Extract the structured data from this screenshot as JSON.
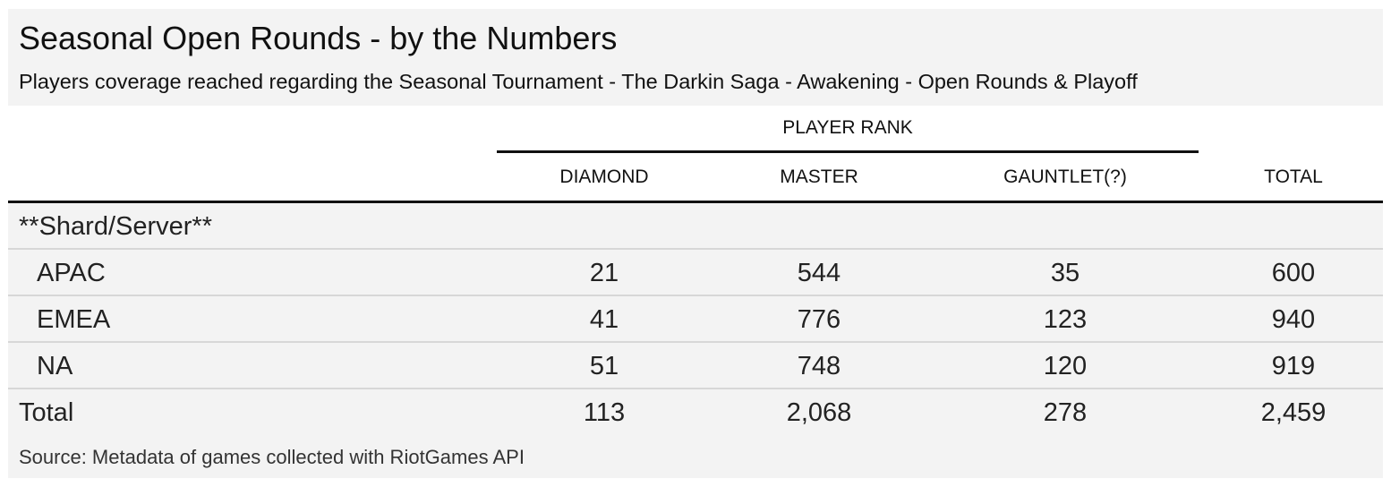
{
  "chart_data": {
    "type": "table",
    "title": "Seasonal Open Rounds - by the Numbers",
    "subtitle": "Players coverage reached regarding the Seasonal Tournament - The Darkin Saga - Awakening - Open Rounds & Playoff",
    "spanner": "PLAYER RANK",
    "columns": [
      "DIAMOND",
      "MASTER",
      "GAUNTLET(?)",
      "TOTAL"
    ],
    "group_label": "**Shard/Server**",
    "rows": [
      {
        "label": "APAC",
        "values": [
          "21",
          "544",
          "35",
          "600"
        ]
      },
      {
        "label": "EMEA",
        "values": [
          "41",
          "776",
          "123",
          "940"
        ]
      },
      {
        "label": "NA",
        "values": [
          "51",
          "748",
          "120",
          "919"
        ]
      }
    ],
    "total_row": {
      "label": "Total",
      "values": [
        "113",
        "2,068",
        "278",
        "2,459"
      ]
    },
    "source": "Source: Metadata of games collected with RiotGames API"
  }
}
